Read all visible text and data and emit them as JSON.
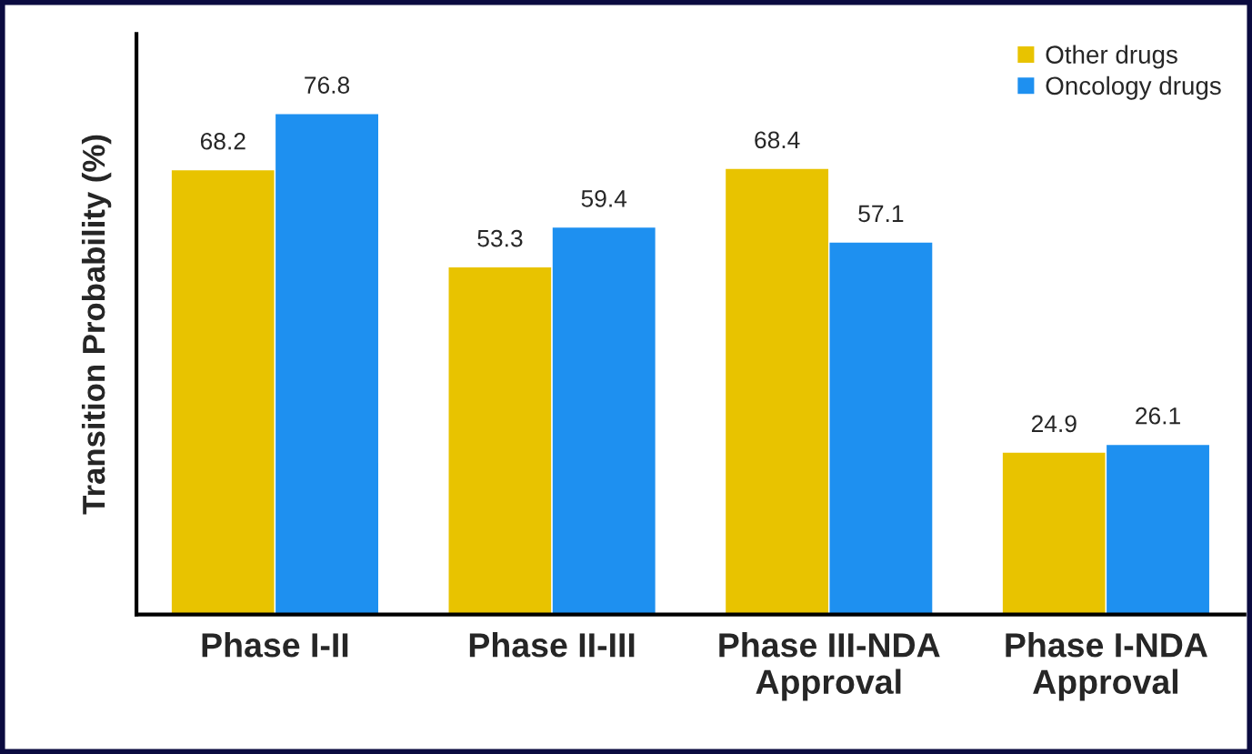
{
  "chart_data": {
    "type": "bar",
    "ylabel": "Transition Probability (%)",
    "categories": [
      "Phase I-II",
      "Phase II-III",
      "Phase III-NDA\nApproval",
      "Phase I-NDA\nApproval"
    ],
    "series": [
      {
        "name": "Other drugs",
        "color": "#e8c300",
        "values": [
          68.2,
          53.3,
          68.4,
          24.9
        ]
      },
      {
        "name": "Oncology drugs",
        "color": "#1e90f0",
        "values": [
          76.8,
          59.4,
          57.1,
          26.1
        ]
      }
    ],
    "ylim": [
      0,
      89
    ],
    "data_labels": true,
    "legend": "top right",
    "grid": false
  }
}
